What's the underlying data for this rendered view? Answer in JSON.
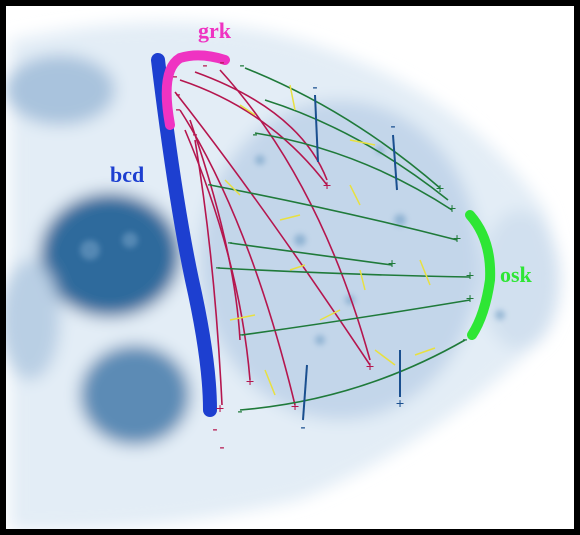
{
  "labels": {
    "grk": "grk",
    "bcd": "bcd",
    "osk": "osk"
  },
  "signs": [
    "-",
    "-",
    "-",
    "-",
    "-",
    "-",
    "-",
    "+",
    "+",
    "+",
    "+",
    "+",
    "-",
    "-",
    "-",
    "-",
    "-",
    "-",
    "-",
    "-",
    "-",
    "-",
    "+",
    "+",
    "+",
    "+",
    "+",
    "+",
    "+",
    "-",
    "-"
  ]
}
